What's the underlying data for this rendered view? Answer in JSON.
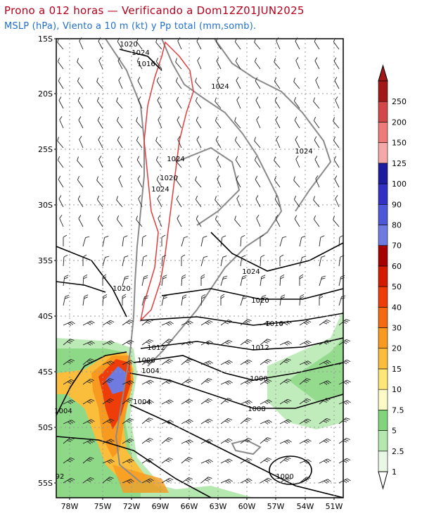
{
  "header": {
    "title": "Prono a 012 horas — Verificando a Dom12Z01JUN2025",
    "subtitle": "MSLP (hPa), Viento a 10 m (kt) y Pp total (mm,somb)."
  },
  "axes": {
    "lat_labels": [
      "15S",
      "20S",
      "25S",
      "30S",
      "35S",
      "40S",
      "45S",
      "50S",
      "55S"
    ],
    "lon_labels": [
      "78W",
      "75W",
      "72W",
      "69W",
      "66W",
      "63W",
      "60W",
      "57W",
      "54W",
      "51W"
    ]
  },
  "isobar_labels": [
    "1020",
    "1024",
    "1016",
    "1024",
    "1024",
    "1024",
    "1020",
    "1024",
    "1020",
    "1024",
    "1020",
    "1016",
    "1012",
    "1012",
    "1008",
    "1004",
    "1000",
    "1004",
    "1008",
    "1004",
    "1000",
    "92"
  ],
  "colorbar": {
    "levels": [
      "1",
      "2.5",
      "5",
      "7.5",
      "10",
      "15",
      "20",
      "30",
      "40",
      "50",
      "60",
      "70",
      "80",
      "90",
      "100",
      "125",
      "150",
      "200",
      "250"
    ],
    "colors": [
      "#e8f8e4",
      "#b5e8ae",
      "#82d47c",
      "#fcfbc8",
      "#fde776",
      "#fbbe3c",
      "#f79a1f",
      "#f46a10",
      "#ee3d08",
      "#d21b00",
      "#a50000",
      "#6f7be0",
      "#4c58d8",
      "#3131c4",
      "#1c1c9e",
      "#f5a8a8",
      "#ef7a7a",
      "#d24848",
      "#a01818"
    ]
  }
}
